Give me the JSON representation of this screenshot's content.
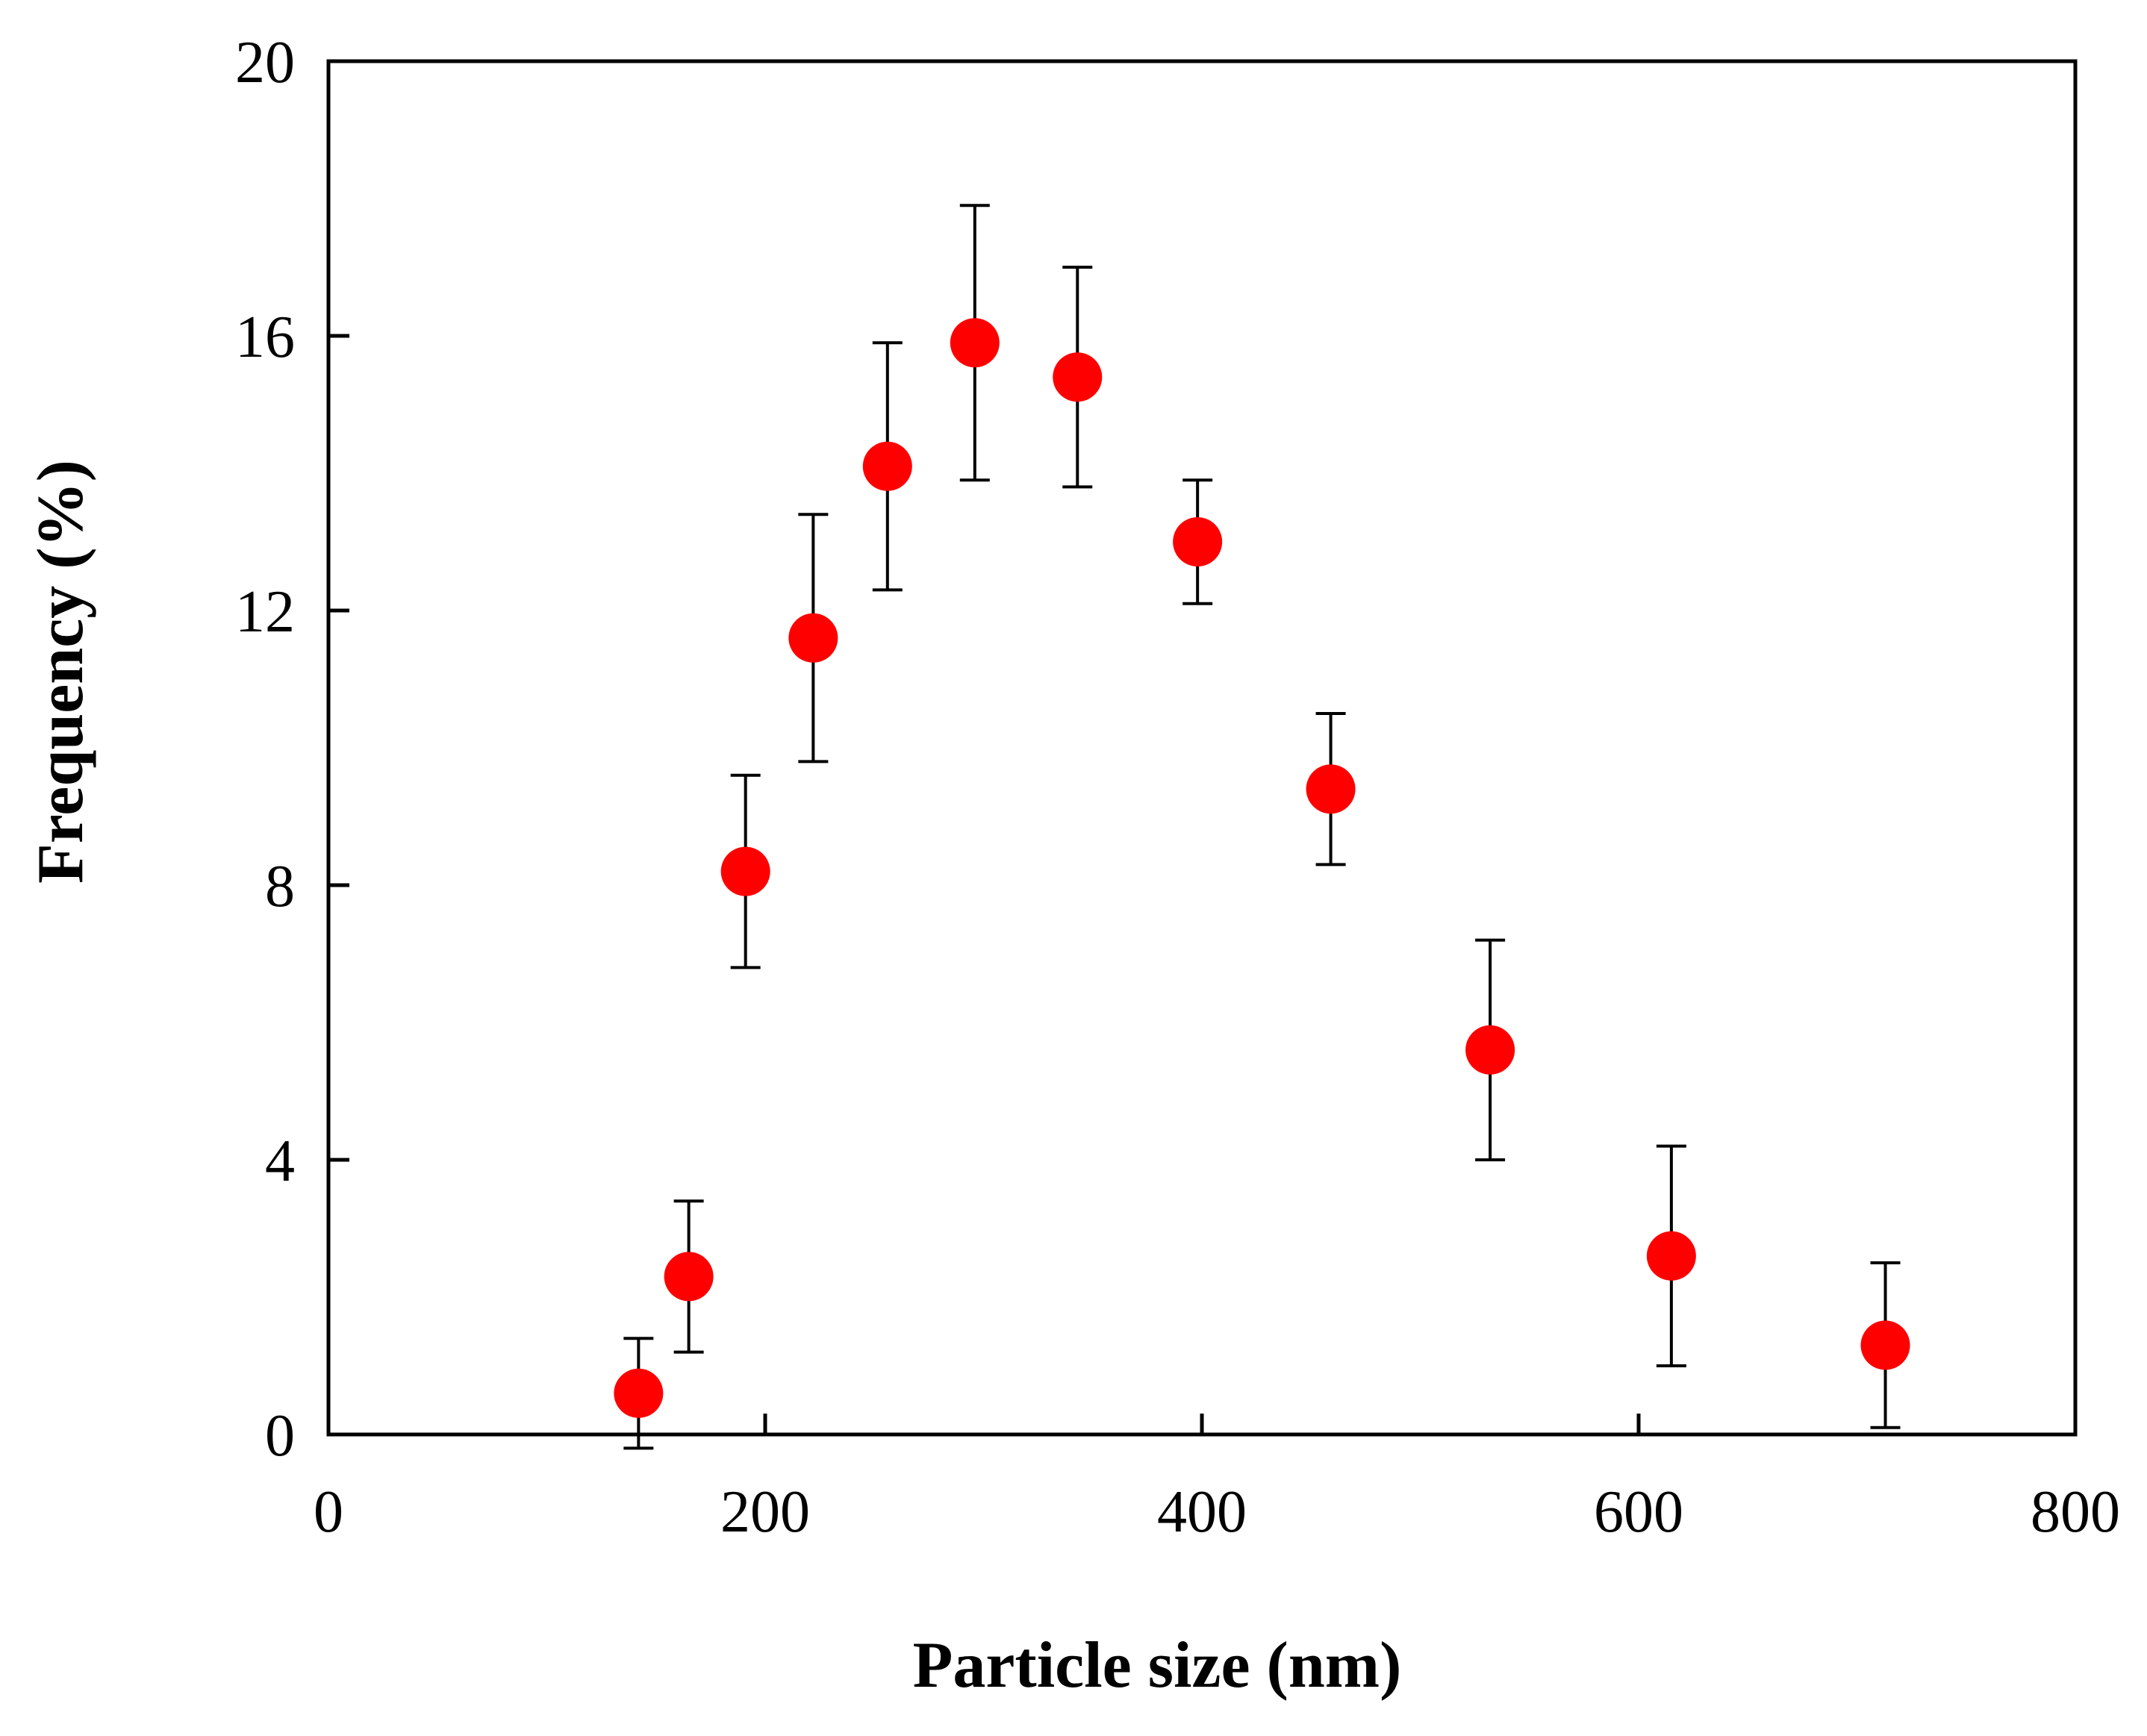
{
  "chart_data": {
    "type": "scatter",
    "title": "",
    "xlabel": "Particle size (nm)",
    "ylabel": "Frequency (%)",
    "xlim": [
      0,
      800
    ],
    "ylim": [
      0,
      20
    ],
    "xticks": [
      0,
      200,
      400,
      600,
      800
    ],
    "yticks": [
      0,
      4,
      8,
      12,
      16,
      20
    ],
    "grid": false,
    "legend": "none",
    "colors": {
      "marker": "#ff0000",
      "axis": "#000000",
      "error_bar": "#000000"
    },
    "series": [
      {
        "name": "Frequency",
        "x": [
          142,
          165,
          191,
          222,
          256,
          296,
          343,
          398,
          459,
          532,
          615,
          713
        ],
        "y": [
          0.6,
          2.3,
          8.2,
          11.6,
          14.1,
          15.9,
          15.4,
          13.0,
          9.4,
          5.6,
          2.6,
          1.3
        ],
        "error": [
          0.8,
          1.1,
          1.4,
          1.8,
          1.8,
          2.0,
          1.6,
          0.9,
          1.1,
          1.6,
          1.6,
          1.2
        ]
      }
    ]
  }
}
